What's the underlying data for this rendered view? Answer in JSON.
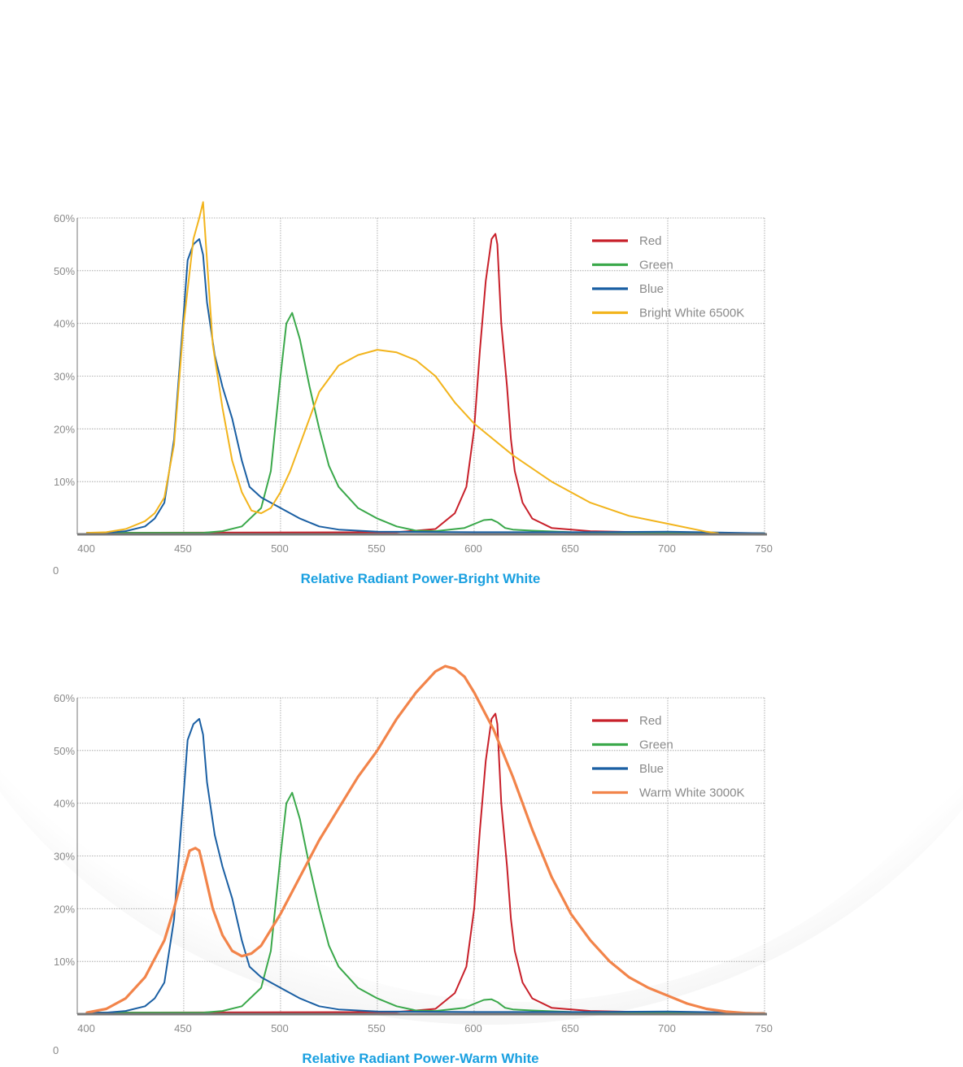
{
  "colors": {
    "title": "#1aa0e0",
    "axis": "#8a8a8a",
    "grid": "#9a9a9a"
  },
  "chart_data": [
    {
      "type": "line",
      "title": "Relative Radiant Power-Bright White",
      "xlabel": "",
      "ylabel": "",
      "zero_label": "0",
      "x_ticks": [
        400,
        450,
        500,
        550,
        600,
        650,
        700,
        750
      ],
      "y_ticks": [
        "10%",
        "20%",
        "30%",
        "40%",
        "50%",
        "60%"
      ],
      "xlim": [
        395,
        750
      ],
      "ylim": [
        0,
        60
      ],
      "grid": true,
      "legend": "top-right",
      "series": [
        {
          "name": "Red",
          "color": "#c8202a",
          "x": [
            400,
            560,
            580,
            590,
            596,
            600,
            603,
            606,
            609,
            611,
            612,
            614,
            617,
            619,
            621,
            625,
            630,
            640,
            660,
            700,
            750
          ],
          "y": [
            0.3,
            0.4,
            1,
            4,
            9,
            20,
            35,
            48,
            56,
            57,
            55,
            40,
            28,
            18,
            12,
            6,
            3,
            1.2,
            0.6,
            0.3,
            0.2
          ]
        },
        {
          "name": "Green",
          "color": "#3aa84a",
          "x": [
            400,
            460,
            470,
            480,
            490,
            495,
            500,
            503,
            506,
            510,
            515,
            520,
            525,
            530,
            540,
            550,
            560,
            570,
            580,
            595,
            605,
            609,
            612,
            616,
            620,
            630,
            650,
            700,
            750
          ],
          "y": [
            0.3,
            0.3,
            0.6,
            1.5,
            5,
            12,
            30,
            40,
            42,
            37,
            28,
            20,
            13,
            9,
            5,
            3,
            1.5,
            0.7,
            0.6,
            1.2,
            2.7,
            2.8,
            2.3,
            1.2,
            0.9,
            0.7,
            0.4,
            0.3,
            0.2
          ]
        },
        {
          "name": "Blue",
          "color": "#1a5fa3",
          "x": [
            400,
            410,
            420,
            430,
            435,
            440,
            445,
            450,
            452,
            455,
            458,
            460,
            462,
            466,
            470,
            475,
            480,
            484,
            490,
            500,
            510,
            520,
            530,
            550,
            600,
            650,
            700,
            750
          ],
          "y": [
            0.3,
            0.3,
            0.6,
            1.5,
            3,
            6,
            18,
            42,
            52,
            55,
            56,
            53,
            44,
            34,
            28,
            22,
            14,
            9,
            7,
            5,
            3,
            1.5,
            0.9,
            0.5,
            0.4,
            0.4,
            0.5,
            0.2
          ]
        },
        {
          "name": "Bright White 6500K",
          "color": "#f2b41c",
          "x": [
            400,
            410,
            420,
            430,
            435,
            440,
            445,
            450,
            455,
            458,
            460,
            462,
            465,
            470,
            475,
            480,
            485,
            490,
            495,
            500,
            505,
            510,
            520,
            530,
            540,
            550,
            560,
            570,
            580,
            590,
            600,
            620,
            640,
            660,
            680,
            700,
            720,
            726
          ],
          "y": [
            0.3,
            0.4,
            1,
            2.5,
            4,
            7,
            17,
            40,
            56,
            60,
            63,
            52,
            36,
            24,
            14,
            8,
            4.5,
            4,
            5,
            8,
            12,
            17,
            27,
            32,
            34,
            35,
            34.5,
            33,
            30,
            25,
            21,
            15,
            10,
            6,
            3.5,
            2,
            0.5,
            0.2
          ]
        }
      ]
    },
    {
      "type": "line",
      "title": "Relative Radiant Power-Warm White",
      "xlabel": "",
      "ylabel": "",
      "zero_label": "0",
      "x_ticks": [
        400,
        450,
        500,
        550,
        600,
        650,
        700,
        750
      ],
      "y_ticks": [
        "10%",
        "20%",
        "30%",
        "40%",
        "50%",
        "60%"
      ],
      "xlim": [
        395,
        750
      ],
      "ylim": [
        0,
        60
      ],
      "grid": true,
      "legend": "top-right",
      "series": [
        {
          "name": "Red",
          "color": "#c8202a",
          "x": [
            400,
            560,
            580,
            590,
            596,
            600,
            603,
            606,
            609,
            611,
            612,
            614,
            617,
            619,
            621,
            625,
            630,
            640,
            660,
            700,
            750
          ],
          "y": [
            0.3,
            0.4,
            1,
            4,
            9,
            20,
            35,
            48,
            56,
            57,
            55,
            40,
            28,
            18,
            12,
            6,
            3,
            1.2,
            0.6,
            0.3,
            0.2
          ]
        },
        {
          "name": "Green",
          "color": "#3aa84a",
          "x": [
            400,
            460,
            470,
            480,
            490,
            495,
            500,
            503,
            506,
            510,
            515,
            520,
            525,
            530,
            540,
            550,
            560,
            570,
            580,
            595,
            605,
            609,
            612,
            616,
            620,
            630,
            650,
            700,
            750
          ],
          "y": [
            0.3,
            0.3,
            0.6,
            1.5,
            5,
            12,
            30,
            40,
            42,
            37,
            28,
            20,
            13,
            9,
            5,
            3,
            1.5,
            0.7,
            0.6,
            1.2,
            2.7,
            2.8,
            2.3,
            1.2,
            0.9,
            0.7,
            0.4,
            0.3,
            0.2
          ]
        },
        {
          "name": "Blue",
          "color": "#1a5fa3",
          "x": [
            400,
            410,
            420,
            430,
            435,
            440,
            445,
            450,
            452,
            455,
            458,
            460,
            462,
            466,
            470,
            475,
            480,
            484,
            490,
            500,
            510,
            520,
            530,
            550,
            600,
            650,
            700,
            750
          ],
          "y": [
            0.3,
            0.3,
            0.6,
            1.5,
            3,
            6,
            18,
            42,
            52,
            55,
            56,
            53,
            44,
            34,
            28,
            22,
            14,
            9,
            7,
            5,
            3,
            1.5,
            0.9,
            0.5,
            0.4,
            0.4,
            0.5,
            0.2
          ]
        },
        {
          "name": "Warm White 3000K",
          "color": "#f2844a",
          "x": [
            400,
            410,
            420,
            430,
            440,
            445,
            450,
            453,
            456,
            458,
            460,
            465,
            470,
            475,
            480,
            485,
            490,
            500,
            510,
            520,
            530,
            540,
            550,
            560,
            570,
            580,
            585,
            590,
            595,
            600,
            610,
            620,
            630,
            640,
            650,
            660,
            670,
            680,
            690,
            700,
            710,
            720,
            730,
            740,
            750
          ],
          "y": [
            0.3,
            1,
            3,
            7,
            14,
            20,
            27,
            31,
            31.5,
            31,
            28,
            20,
            15,
            12,
            11,
            11.5,
            13,
            19,
            26,
            33,
            39,
            45,
            50,
            56,
            61,
            65,
            66,
            65.5,
            64,
            61,
            54,
            45,
            35,
            26,
            19,
            14,
            10,
            7,
            5,
            3.5,
            2,
            1,
            0.5,
            0.2,
            0.1
          ]
        }
      ]
    }
  ]
}
